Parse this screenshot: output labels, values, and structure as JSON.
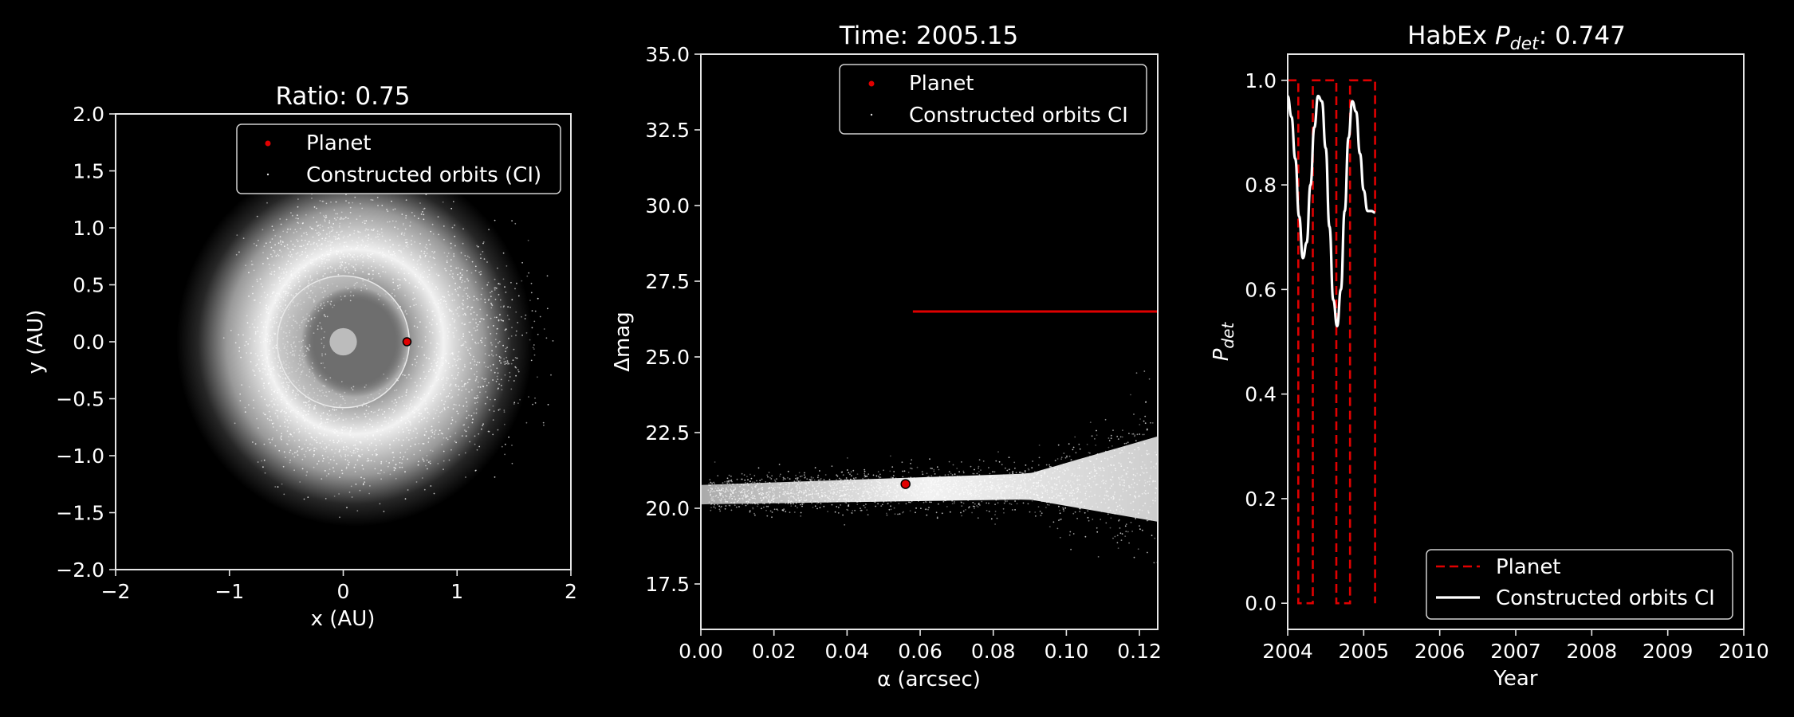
{
  "colors": {
    "background": "#000000",
    "planet": "#e00000",
    "orbits": "#ffffff",
    "hz_disk": "#bdbdbd"
  },
  "chart_data": [
    {
      "type": "scatter",
      "title": "Ratio: 0.75",
      "xlabel": "x (AU)",
      "ylabel": "y (AU)",
      "xlim": [
        -2,
        2
      ],
      "ylim": [
        -2,
        2
      ],
      "xticks": [
        -2,
        -1,
        0,
        1,
        2
      ],
      "xtick_labels": [
        "−2",
        "−1",
        "0",
        "1",
        "2"
      ],
      "yticks": [
        -2.0,
        -1.5,
        -1.0,
        -0.5,
        0.0,
        0.5,
        1.0,
        1.5,
        2.0
      ],
      "ytick_labels": [
        "−2.0",
        "−1.5",
        "−1.0",
        "−0.5",
        "0.0",
        "0.5",
        "1.0",
        "1.5",
        "2.0"
      ],
      "legend": {
        "placement": "top-right",
        "entries": [
          {
            "label": "Planet",
            "marker": "dot",
            "color": "#e00000"
          },
          {
            "label": "Constructed orbits (CI)",
            "marker": "point",
            "color": "#ffffff"
          }
        ]
      },
      "planet": {
        "x": 0.56,
        "y": 0.0
      },
      "habitable_disk": {
        "center": [
          0,
          0
        ],
        "inner_radius": 0.12,
        "outer_radius": 0.58
      },
      "orbit_cloud": {
        "center": [
          0.1,
          0.0
        ],
        "inner_radius": 0.35,
        "outer_radius": 1.45
      }
    },
    {
      "type": "scatter",
      "title": "Time: 2005.15",
      "xlabel": "α (arcsec)",
      "ylabel": "Δmag",
      "xlim": [
        0,
        0.125
      ],
      "ylim": [
        16,
        35
      ],
      "xticks": [
        0.0,
        0.02,
        0.04,
        0.06,
        0.08,
        0.1,
        0.12
      ],
      "xtick_labels": [
        "0.00",
        "0.02",
        "0.04",
        "0.06",
        "0.08",
        "0.10",
        "0.12"
      ],
      "yticks": [
        17.5,
        20.0,
        22.5,
        25.0,
        27.5,
        30.0,
        32.5,
        35.0
      ],
      "ytick_labels": [
        "17.5",
        "20.0",
        "22.5",
        "25.0",
        "27.5",
        "30.0",
        "32.5",
        "35.0"
      ],
      "legend": {
        "placement": "top-right",
        "entries": [
          {
            "label": "Planet",
            "marker": "dot",
            "color": "#e00000"
          },
          {
            "label": "Constructed orbits CI",
            "marker": "point",
            "color": "#ffffff"
          }
        ]
      },
      "planet": {
        "x": 0.056,
        "y": 20.8
      },
      "contrast_limit": {
        "x": [
          0.058,
          0.125
        ],
        "y": 26.5,
        "color": "#e00000"
      }
    },
    {
      "type": "line",
      "title_prefix": "HabEx ",
      "title_var": "P",
      "title_sub": "det",
      "title_suffix": ": 0.747",
      "xlabel": "Year",
      "ylabel_var": "P",
      "ylabel_sub": "det",
      "xlim": [
        2004,
        2010
      ],
      "ylim": [
        -0.05,
        1.05
      ],
      "xticks": [
        2004,
        2005,
        2006,
        2007,
        2008,
        2009,
        2010
      ],
      "xtick_labels": [
        "2004",
        "2005",
        "2006",
        "2007",
        "2008",
        "2009",
        "2010"
      ],
      "yticks": [
        0.0,
        0.2,
        0.4,
        0.6,
        0.8,
        1.0
      ],
      "ytick_labels": [
        "0.0",
        "0.2",
        "0.4",
        "0.6",
        "0.8",
        "1.0"
      ],
      "legend": {
        "placement": "bottom-right",
        "entries": [
          {
            "label": "Planet",
            "style": "dashed",
            "color": "#e00000"
          },
          {
            "label": "Constructed orbits CI",
            "style": "solid",
            "color": "#ffffff"
          }
        ]
      },
      "series": [
        {
          "name": "Planet",
          "x": [
            2004.0,
            2004.14,
            2004.14,
            2004.33,
            2004.33,
            2004.64,
            2004.64,
            2004.82,
            2004.82,
            2005.15,
            2005.15
          ],
          "y": [
            1,
            1,
            0,
            0,
            1,
            1,
            0,
            0,
            1,
            1,
            0
          ]
        },
        {
          "name": "Constructed orbits CI",
          "x": [
            2004.0,
            2004.05,
            2004.1,
            2004.15,
            2004.2,
            2004.25,
            2004.3,
            2004.35,
            2004.4,
            2004.45,
            2004.5,
            2004.55,
            2004.6,
            2004.65,
            2004.7,
            2004.75,
            2004.8,
            2004.85,
            2004.9,
            2004.95,
            2005.0,
            2005.05,
            2005.1,
            2005.15
          ],
          "y": [
            0.97,
            0.93,
            0.85,
            0.74,
            0.66,
            0.69,
            0.8,
            0.91,
            0.97,
            0.96,
            0.87,
            0.72,
            0.58,
            0.53,
            0.6,
            0.75,
            0.89,
            0.96,
            0.94,
            0.86,
            0.79,
            0.75,
            0.75,
            0.747
          ]
        }
      ]
    }
  ]
}
